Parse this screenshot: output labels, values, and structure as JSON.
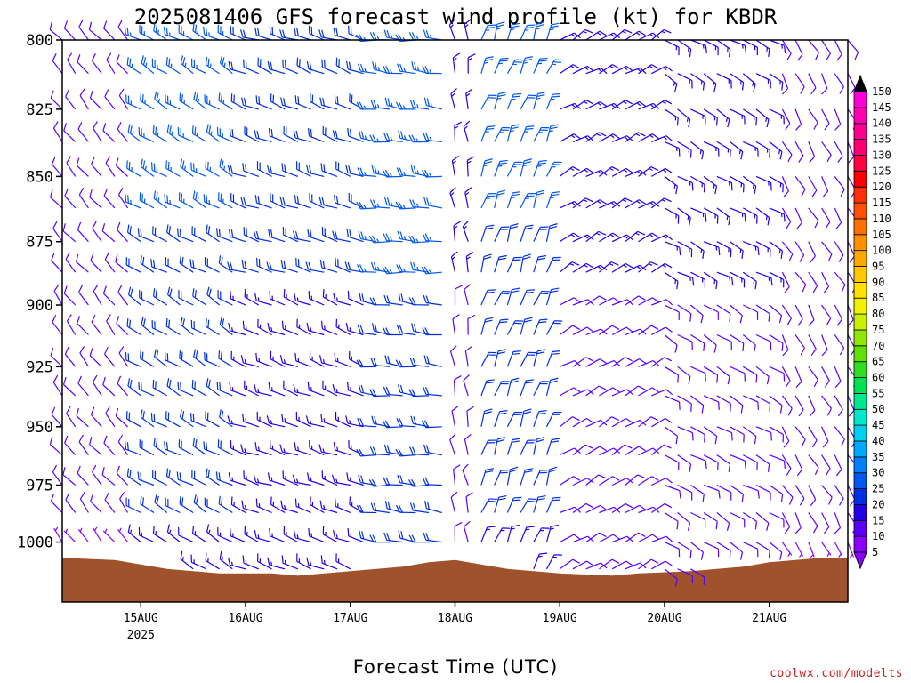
{
  "chart_data": {
    "type": "wind_barb_profile",
    "title": "2025081406 GFS forecast wind profile (kt) for KBDR",
    "xlabel": "Forecast Time (UTC)",
    "ylabel": "",
    "x_ticks": [
      {
        "label": "15AUG",
        "sublabel": "2025",
        "hour": 18
      },
      {
        "label": "16AUG",
        "sublabel": "",
        "hour": 42
      },
      {
        "label": "17AUG",
        "sublabel": "",
        "hour": 66
      },
      {
        "label": "18AUG",
        "sublabel": "",
        "hour": 90
      },
      {
        "label": "19AUG",
        "sublabel": "",
        "hour": 114
      },
      {
        "label": "20AUG",
        "sublabel": "",
        "hour": 138
      },
      {
        "label": "21AUG",
        "sublabel": "",
        "hour": 162
      }
    ],
    "x_range_hours": [
      0,
      180
    ],
    "y_scale": "log",
    "y_range_hPa": [
      800,
      1027
    ],
    "y_ticks": [
      800,
      825,
      850,
      875,
      900,
      925,
      950,
      975,
      1000
    ],
    "barb_levels_hPa": [
      800,
      812,
      825,
      837,
      850,
      862,
      875,
      887,
      900,
      912,
      925,
      937,
      950,
      962,
      975,
      987,
      1000,
      1012,
      1025
    ],
    "barb_times_hours": [
      0,
      3,
      6,
      9,
      12,
      15,
      18,
      21,
      24,
      27,
      30,
      33,
      36,
      39,
      42,
      45,
      48,
      51,
      54,
      57,
      60,
      63,
      66,
      69,
      72,
      75,
      78,
      81,
      84,
      87,
      90,
      93,
      96,
      99,
      102,
      105,
      108,
      111,
      114,
      117,
      120,
      123,
      126,
      129,
      132,
      135,
      138,
      141,
      144,
      147,
      150,
      153,
      156,
      159,
      162,
      165,
      168,
      171,
      174,
      177,
      180
    ],
    "wind_regimes": [
      {
        "from_hour": 0,
        "to_hour": 18,
        "direction_deg": 320,
        "speed_kt": [
          5,
          10
        ]
      },
      {
        "from_hour": 18,
        "to_hour": 42,
        "direction_deg": 300,
        "speed_kt": [
          10,
          25
        ]
      },
      {
        "from_hour": 42,
        "to_hour": 72,
        "direction_deg": 290,
        "speed_kt": [
          10,
          20
        ]
      },
      {
        "from_hour": 72,
        "to_hour": 90,
        "direction_deg": 275,
        "speed_kt": [
          15,
          25
        ]
      },
      {
        "from_hour": 90,
        "to_hour": 96,
        "direction_deg": 350,
        "speed_kt": [
          5,
          15
        ]
      },
      {
        "from_hour": 96,
        "to_hour": 114,
        "direction_deg": 20,
        "speed_kt": [
          10,
          25
        ]
      },
      {
        "from_hour": 114,
        "to_hour": 138,
        "direction_deg": 60,
        "speed_kt": [
          5,
          15
        ]
      },
      {
        "from_hour": 138,
        "to_hour": 165,
        "direction_deg": 120,
        "speed_kt": [
          5,
          15
        ]
      },
      {
        "from_hour": 165,
        "to_hour": 180,
        "direction_deg": 150,
        "speed_kt": [
          5,
          10
        ]
      }
    ],
    "surface_pressure_hPa": [
      {
        "hour": 0,
        "p": 1007
      },
      {
        "hour": 12,
        "p": 1008
      },
      {
        "hour": 18,
        "p": 1010
      },
      {
        "hour": 24,
        "p": 1012
      },
      {
        "hour": 30,
        "p": 1013
      },
      {
        "hour": 36,
        "p": 1014
      },
      {
        "hour": 48,
        "p": 1014
      },
      {
        "hour": 54,
        "p": 1015
      },
      {
        "hour": 60,
        "p": 1014
      },
      {
        "hour": 66,
        "p": 1013
      },
      {
        "hour": 72,
        "p": 1012
      },
      {
        "hour": 78,
        "p": 1011
      },
      {
        "hour": 84,
        "p": 1009
      },
      {
        "hour": 90,
        "p": 1008
      },
      {
        "hour": 96,
        "p": 1010
      },
      {
        "hour": 102,
        "p": 1012
      },
      {
        "hour": 108,
        "p": 1013
      },
      {
        "hour": 114,
        "p": 1014
      },
      {
        "hour": 126,
        "p": 1015
      },
      {
        "hour": 132,
        "p": 1014
      },
      {
        "hour": 144,
        "p": 1013
      },
      {
        "hour": 150,
        "p": 1012
      },
      {
        "hour": 156,
        "p": 1011
      },
      {
        "hour": 162,
        "p": 1009
      },
      {
        "hour": 168,
        "p": 1008
      },
      {
        "hour": 174,
        "p": 1007
      },
      {
        "hour": 180,
        "p": 1007
      }
    ],
    "colorbar": {
      "levels": [
        5,
        10,
        15,
        20,
        25,
        30,
        35,
        40,
        45,
        50,
        55,
        60,
        65,
        70,
        75,
        80,
        85,
        90,
        95,
        100,
        105,
        110,
        115,
        120,
        125,
        130,
        135,
        140,
        145,
        150
      ],
      "colors": [
        "#8a00ff",
        "#5a00ff",
        "#2000e8",
        "#0030e0",
        "#0058f0",
        "#0080ff",
        "#00a8ff",
        "#00d0f0",
        "#00e8c8",
        "#00e890",
        "#00e050",
        "#30e020",
        "#60e000",
        "#90e800",
        "#c8f000",
        "#f0f000",
        "#ffe000",
        "#ffc800",
        "#ffa800",
        "#ff9000",
        "#ff7000",
        "#ff5000",
        "#ff3000",
        "#ff0000",
        "#ff0040",
        "#ff0070",
        "#ff0090",
        "#ff00b0",
        "#ff00d8",
        "#ff00ff"
      ]
    },
    "grid": false,
    "legend": "right"
  },
  "credit": "coolwx.com/modelts",
  "colors": {
    "ground": "#a0522d",
    "frame": "#000000",
    "credit": "#cc2020"
  }
}
